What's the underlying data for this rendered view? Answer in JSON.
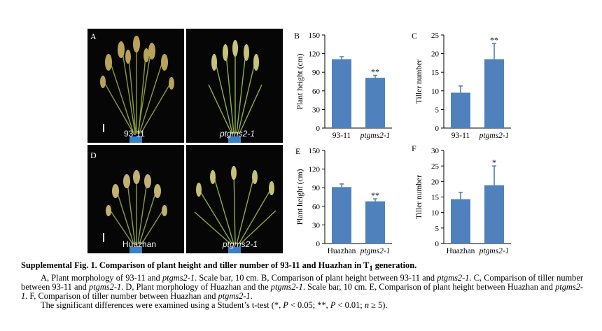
{
  "photos": [
    {
      "letter": "A",
      "label": "93-11",
      "italic": false
    },
    {
      "letter": "",
      "label": "ptgms2-1",
      "italic": true
    },
    {
      "letter": "D",
      "label": "Huazhan",
      "italic": false
    },
    {
      "letter": "",
      "label": "ptgms2-1",
      "italic": true
    }
  ],
  "chart_data": [
    {
      "panel": "B",
      "type": "bar",
      "ylabel": "Plant height (cm)",
      "categories": [
        "93-11",
        "ptgms2-1"
      ],
      "italic_categories": [
        false,
        true
      ],
      "values": [
        111,
        81
      ],
      "errors": [
        4,
        4
      ],
      "significance": [
        "",
        "**"
      ],
      "ylim": [
        0,
        150
      ],
      "yticks": [
        "0",
        "30",
        "60",
        "90",
        "120",
        "150"
      ]
    },
    {
      "panel": "C",
      "type": "bar",
      "ylabel": "Tiller number",
      "categories": [
        "93-11",
        "ptgms2-1"
      ],
      "italic_categories": [
        false,
        true
      ],
      "values": [
        9.5,
        18.5
      ],
      "errors": [
        1.8,
        4.2
      ],
      "significance": [
        "",
        "**"
      ],
      "ylim": [
        0,
        25
      ],
      "yticks": [
        "0",
        "5",
        "10",
        "15",
        "20",
        "25"
      ]
    },
    {
      "panel": "E",
      "type": "bar",
      "ylabel": "Plant height (cm)",
      "categories": [
        "Huazhan",
        "ptgms2-1"
      ],
      "italic_categories": [
        false,
        true
      ],
      "values": [
        91,
        68
      ],
      "errors": [
        5,
        4
      ],
      "significance": [
        "",
        "**"
      ],
      "ylim": [
        0,
        150
      ],
      "yticks": [
        "0",
        "30",
        "60",
        "90",
        "120",
        "150"
      ]
    },
    {
      "panel": "F",
      "type": "bar",
      "ylabel": "Tiller number",
      "categories": [
        "Huazhan",
        "ptgms2-1"
      ],
      "italic_categories": [
        false,
        true
      ],
      "values": [
        14.3,
        18.8
      ],
      "errors": [
        2.2,
        6.2
      ],
      "significance": [
        "",
        "*"
      ],
      "ylim": [
        0,
        30
      ],
      "yticks": [
        "0",
        "5",
        "10",
        "15",
        "20",
        "25",
        "30"
      ]
    }
  ],
  "colors": {
    "bar": "#4f81bd",
    "photo_bg": "#060606"
  },
  "caption": {
    "title": "Supplemental Fig. 1. Comparison of plant height and tiller number of 93-11 and Huazhan in T",
    "title_sub": "1",
    "title_end": " generation.",
    "p1_a": "A, Plant morphology of 93-11 and ",
    "p1_b": "ptgms2-1",
    "p1_c": ". Scale bar, 10 cm. B, Comparison of plant height between 93-11 and ",
    "p1_d": "ptgms2-1",
    "p1_e": ". C, Comparison of tiller number between 93-11 and ",
    "p1_f": "ptgms2-1",
    "p1_g": ". D, Plant morphology of Huazhan and the ",
    "p1_h": "ptgms2-1",
    "p1_i": ". Scale bar, 10 cm. E, Comparison of plant height between Huazhan and ",
    "p1_j": "ptgms2-1",
    "p1_k": ". F, Comparison of tiller number between Huazhan and ",
    "p1_l": "ptgms2-1",
    "p1_m": ".",
    "p2_a": "The significant differences were examined using a Student’s t-test (*, ",
    "p2_b": "P",
    "p2_c": " < 0.05; **, ",
    "p2_d": "P",
    "p2_e": " < 0.01; ",
    "p2_f": "n",
    "p2_g": " ≥ 5)."
  }
}
